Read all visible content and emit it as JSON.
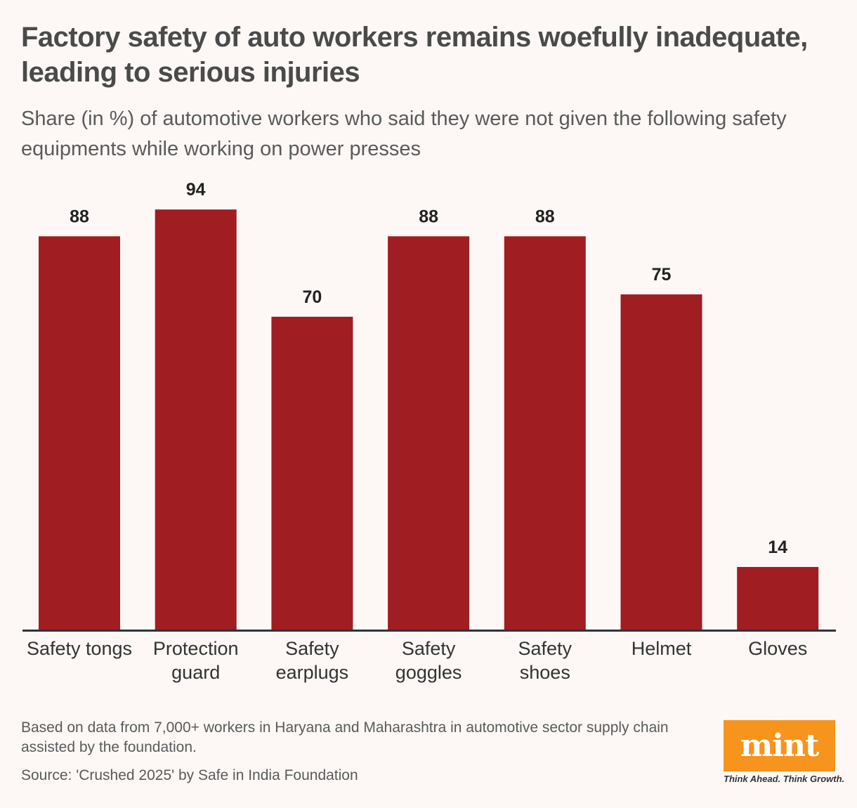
{
  "header": {
    "title": "Factory safety of auto workers remains woefully inadequate, leading to serious injuries",
    "subtitle": "Share (in %) of automotive workers who said they were not given the following safety equipments while working on power presses"
  },
  "chart_data": {
    "type": "bar",
    "title": "Factory safety of auto workers remains woefully inadequate, leading to serious injuries",
    "subtitle": "Share (in %) of automotive workers who said they were not given the following safety equipments while working on power presses",
    "categories": [
      [
        "Safety tongs"
      ],
      [
        "Protection",
        "guard"
      ],
      [
        "Safety",
        "earplugs"
      ],
      [
        "Safety",
        "goggles"
      ],
      [
        "Safety",
        "shoes"
      ],
      [
        "Helmet"
      ],
      [
        "Gloves"
      ]
    ],
    "values": [
      88,
      94,
      70,
      88,
      88,
      75,
      14
    ],
    "value_labels": [
      "88",
      "94",
      "70",
      "88",
      "88",
      "75",
      "14"
    ],
    "xlabel": "",
    "ylabel": "",
    "ylim": [
      0,
      100
    ],
    "grid": false,
    "bar_color": "#a01d22",
    "axis_color": "#333333"
  },
  "footer": {
    "note": "Based on data from 7,000+ workers in Haryana and Maharashtra in automotive sector supply chain assisted by the foundation.",
    "source": "Source: 'Crushed 2025' by Safe in India Foundation"
  },
  "brand": {
    "logo_text": "mint",
    "tagline": "Think Ahead. Think Growth.",
    "logo_color": "#f7941d"
  }
}
